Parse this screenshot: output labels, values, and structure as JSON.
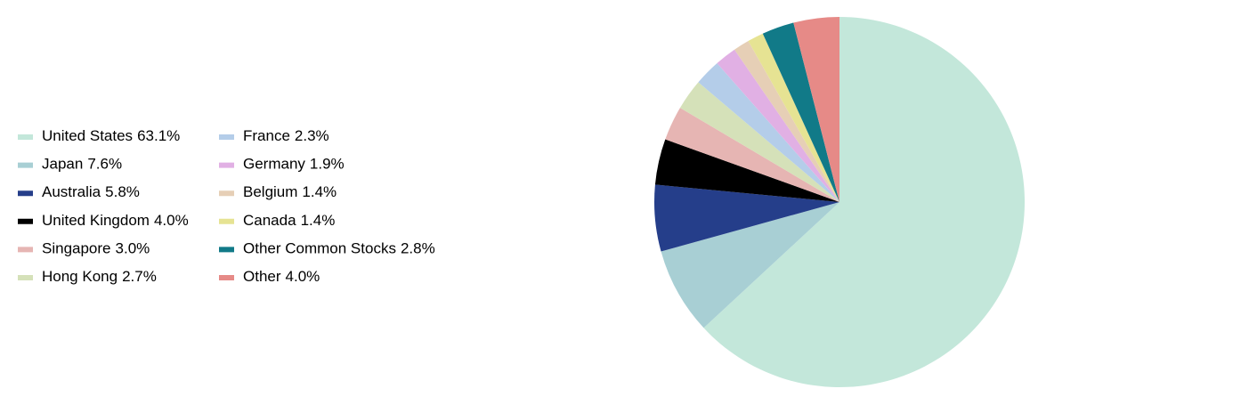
{
  "chart_data": {
    "type": "pie",
    "categories": [
      "United States",
      "Japan",
      "Australia",
      "United Kingdom",
      "Singapore",
      "Hong Kong",
      "France",
      "Germany",
      "Belgium",
      "Canada",
      "Other Common Stocks",
      "Other"
    ],
    "values": [
      63.1,
      7.6,
      5.8,
      4.0,
      3.0,
      2.7,
      2.3,
      1.9,
      1.4,
      1.4,
      2.8,
      4.0
    ],
    "value_labels": [
      "63.1%",
      "7.6%",
      "5.8%",
      "4.0%",
      "3.0%",
      "2.7%",
      "2.3%",
      "1.9%",
      "1.4%",
      "1.4%",
      "2.8%",
      "4.0%"
    ],
    "colors": [
      "#c3e7da",
      "#a8cfd4",
      "#253e8a",
      "#000000",
      "#e6b5b3",
      "#d5e1b9",
      "#b4cde9",
      "#e1b0e4",
      "#e6cfb6",
      "#e6e393",
      "#117a88",
      "#e68a87"
    ],
    "legend": "left"
  }
}
